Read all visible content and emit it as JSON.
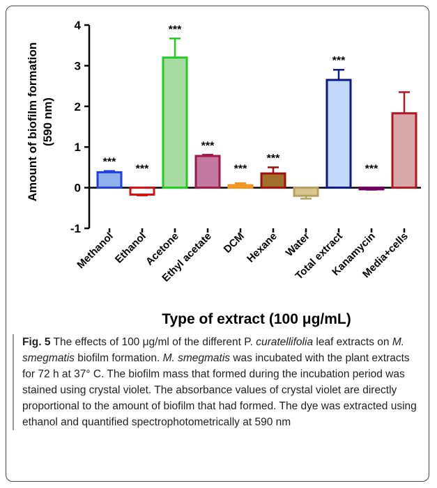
{
  "chart_data": {
    "type": "bar",
    "y_label_lines": [
      "Amount of biofilm formation",
      "(590 nm)"
    ],
    "x_label": "Type of extract (100 μg/mL)",
    "categories": [
      "Methanol",
      "Ethanol",
      "Acetone",
      "Ethyl acetate",
      "DCM",
      "Hexane",
      "Water",
      "Total extract",
      "Kanamycin",
      "Media+cells"
    ],
    "values": [
      0.38,
      -0.17,
      3.2,
      0.78,
      0.06,
      0.35,
      -0.2,
      2.65,
      -0.04,
      1.83
    ],
    "errors": [
      0.03,
      0.02,
      0.47,
      0.03,
      0.05,
      0.15,
      0.07,
      0.25,
      0.01,
      0.52
    ],
    "significance": [
      "***",
      "***",
      "***",
      "***",
      "***",
      "***",
      null,
      "***",
      "***",
      null
    ],
    "edge_colors": [
      "#1e3fe0",
      "#d41010",
      "#22cc22",
      "#a01848",
      "#f5901a",
      "#a01010",
      "#b8a060",
      "#0a1a88",
      "#700060",
      "#b01820"
    ],
    "fill_colors": [
      "#8fb0ea",
      "#ffffff",
      "#a8dca2",
      "#c47aa0",
      "#f8b870",
      "#a0702a",
      "#d8c890",
      "#c2d8f8",
      "#a04080",
      "#d8a8aa"
    ],
    "ylim": [
      -1,
      4
    ],
    "yticks": [
      -1,
      0,
      1,
      2,
      3,
      4
    ]
  },
  "caption": {
    "label": "Fig. 5",
    "parts": [
      " The effects of 100 μg/ml of the different P. ",
      "curatellifolia",
      " leaf extracts on ",
      "M. smegmatis",
      " biofilm formation. ",
      "M. smegmatis",
      " was incubated with the plant extracts for 72 h at 37° C. The biofilm mass that formed during the incubation period was stained using crystal violet. The absorbance values of crystal violet are directly proportional to the amount of biofilm that had formed. The dye was extracted using ethanol and quantified spectrophotometrically at 590 nm"
    ]
  }
}
